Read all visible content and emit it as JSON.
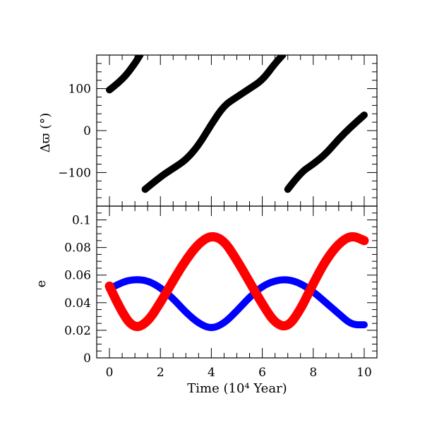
{
  "chart_data": [
    {
      "type": "scatter",
      "panel": "top",
      "xlabel": "",
      "ylabel": "Δϖ (°)",
      "xlim": [
        -0.5,
        10.5
      ],
      "ylim": [
        -180,
        180
      ],
      "yticks": [
        -100,
        0,
        100
      ],
      "ytick_labels": [
        "−100",
        "0",
        "100"
      ],
      "series": [
        {
          "color": "#000000",
          "x": [
            0.0,
            0.5,
            1.0,
            1.2,
            1.4,
            2.0,
            2.5,
            3.0,
            3.5,
            4.0,
            4.5,
            5.0,
            5.5,
            6.0,
            6.5,
            6.8,
            7.0,
            7.5,
            8.0,
            8.5,
            9.0,
            9.5,
            10.0
          ],
          "y": [
            97,
            120,
            160,
            180,
            -140,
            -110,
            -90,
            -70,
            -35,
            15,
            60,
            80,
            100,
            120,
            160,
            180,
            -140,
            -100,
            -80,
            -55,
            -20,
            10,
            37
          ]
        }
      ]
    },
    {
      "type": "scatter",
      "panel": "bottom",
      "xlabel": "Time (10⁴ Year)",
      "ylabel": "e",
      "xlim": [
        -0.5,
        10.5
      ],
      "ylim": [
        0,
        0.11
      ],
      "xticks": [
        0,
        2,
        4,
        6,
        8,
        10
      ],
      "xtick_labels": [
        "0",
        "2",
        "4",
        "6",
        "8",
        "10"
      ],
      "yticks": [
        0,
        0.02,
        0.04,
        0.06,
        0.08,
        0.1
      ],
      "ytick_labels": [
        "0",
        "0.02",
        "0.04",
        "0.06",
        "0.08",
        "0.1"
      ],
      "series": [
        {
          "color": "#0000ff",
          "x": [
            0.0,
            0.5,
            1.0,
            1.5,
            2.0,
            2.5,
            3.0,
            3.5,
            4.0,
            4.5,
            5.0,
            5.5,
            6.0,
            6.5,
            7.0,
            7.5,
            8.0,
            8.5,
            9.0,
            9.5,
            10.0
          ],
          "y": [
            0.05,
            0.055,
            0.057,
            0.056,
            0.051,
            0.043,
            0.033,
            0.025,
            0.021,
            0.025,
            0.034,
            0.044,
            0.052,
            0.056,
            0.057,
            0.054,
            0.048,
            0.04,
            0.032,
            0.024,
            0.024
          ]
        },
        {
          "color": "#ff0000",
          "x": [
            0.0,
            0.5,
            1.0,
            1.5,
            2.0,
            2.5,
            3.0,
            3.5,
            4.0,
            4.5,
            5.0,
            5.5,
            6.0,
            6.5,
            7.0,
            7.5,
            8.0,
            8.5,
            9.0,
            9.5,
            10.0
          ],
          "y": [
            0.052,
            0.032,
            0.021,
            0.026,
            0.04,
            0.056,
            0.071,
            0.083,
            0.089,
            0.085,
            0.071,
            0.055,
            0.039,
            0.025,
            0.022,
            0.035,
            0.054,
            0.071,
            0.083,
            0.089,
            0.085
          ]
        }
      ]
    }
  ]
}
